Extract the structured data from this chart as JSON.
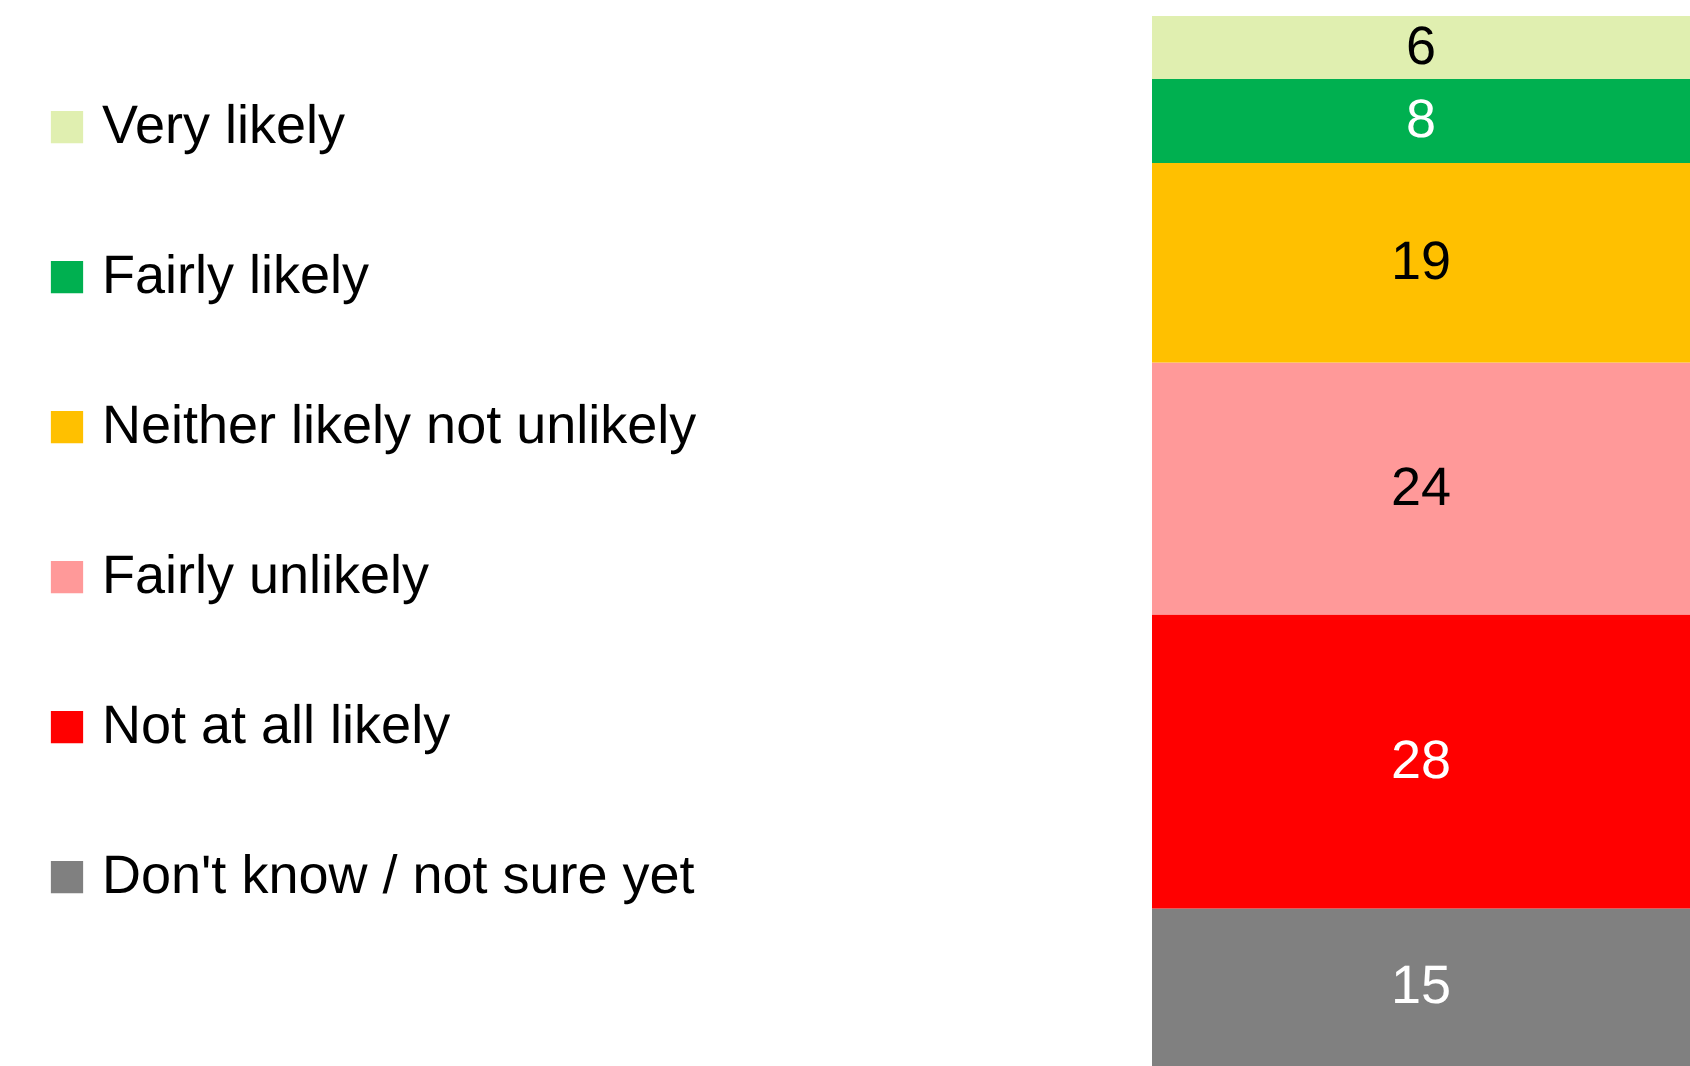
{
  "chart_data": {
    "type": "bar",
    "stacked": true,
    "categories": [
      null
    ],
    "data_labels": true,
    "legend": "left",
    "series": [
      {
        "name": "Don't know / not sure yet",
        "color": "#808080",
        "values": [
          15
        ]
      },
      {
        "name": "Not at all likely",
        "color": "#ff0000",
        "values": [
          28
        ]
      },
      {
        "name": "Fairly unlikely",
        "color": "#ff9999",
        "values": [
          24
        ]
      },
      {
        "name": "Neither likely not unlikely",
        "color": "#ffc000",
        "values": [
          19
        ]
      },
      {
        "name": "Fairly likely",
        "color": "#00b050",
        "values": [
          8
        ]
      },
      {
        "name": "Very likely",
        "color": "#e0efb0",
        "values": [
          6
        ]
      }
    ]
  }
}
